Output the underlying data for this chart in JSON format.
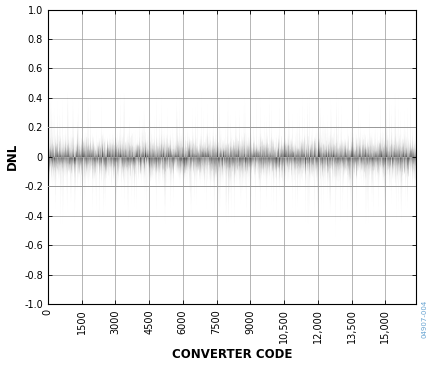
{
  "title": "",
  "xlabel": "CONVERTER CODE",
  "ylabel": "DNL",
  "xlim": [
    0,
    16384
  ],
  "ylim": [
    -1.0,
    1.0
  ],
  "xticks": [
    0,
    1500,
    3000,
    4500,
    6000,
    7500,
    9000,
    10500,
    12000,
    13500,
    15000
  ],
  "xtick_labels": [
    "0",
    "1500",
    "3000",
    "4500",
    "6000",
    "7500",
    "9000",
    "10,500",
    "12,000",
    "13,500",
    "15,000"
  ],
  "yticks": [
    -1.0,
    -0.8,
    -0.6,
    -0.4,
    -0.2,
    0,
    0.2,
    0.4,
    0.6,
    0.8,
    1.0
  ],
  "hlines": [
    0.2,
    -0.2
  ],
  "hline_color": "#999999",
  "noise_mean": 0.0,
  "noise_std": 0.075,
  "noise_n": 16384,
  "line_color": "#000000",
  "background_color": "#ffffff",
  "grid_color": "#999999",
  "watermark": "04907-004",
  "watermark_color": "#5599cc",
  "xlabel_fontsize": 8.5,
  "ylabel_fontsize": 8.5,
  "tick_fontsize": 7,
  "figsize": [
    4.35,
    3.67
  ],
  "dpi": 100
}
